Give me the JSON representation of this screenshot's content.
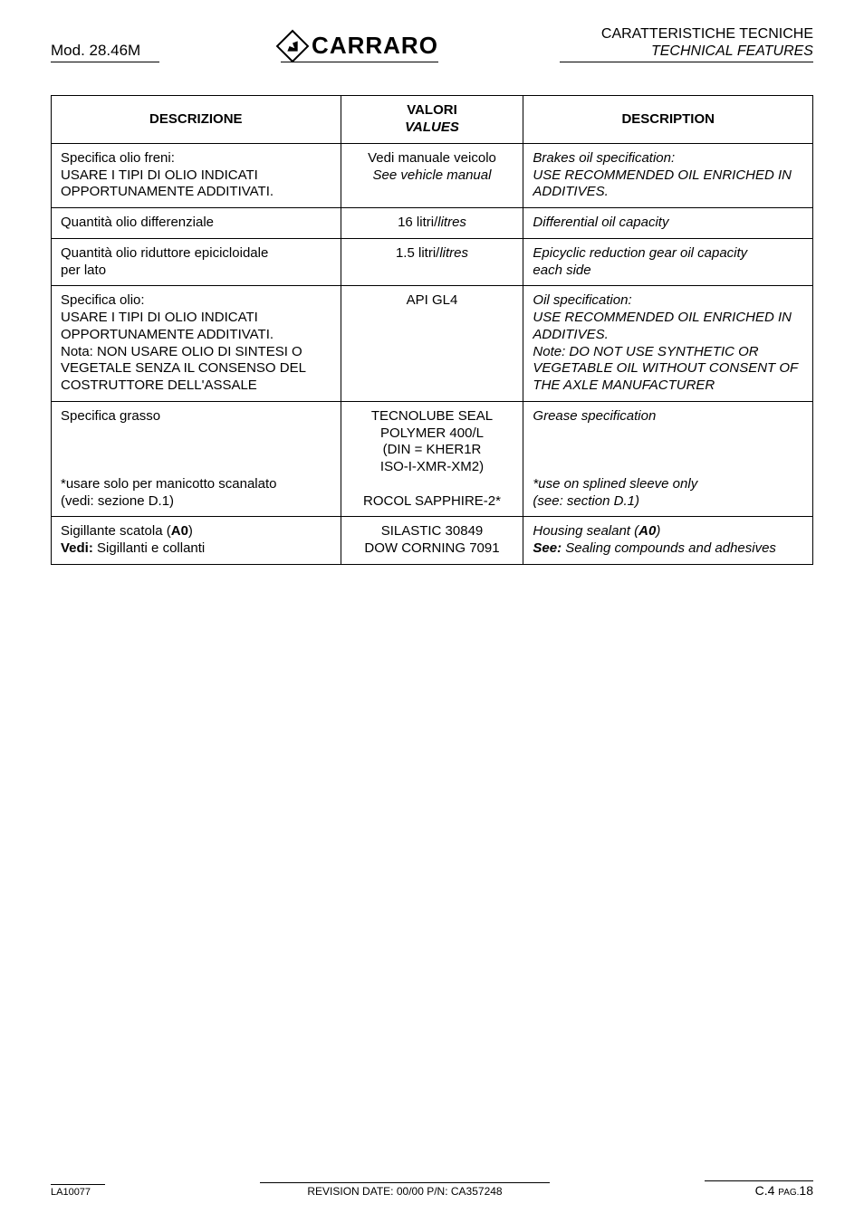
{
  "header": {
    "left": "Mod. 28.46M",
    "logo_text": "CARRARO",
    "right_line1": "CARATTERISTICHE TECNICHE",
    "right_line2": "TECHNICAL FEATURES"
  },
  "table": {
    "headers": {
      "col1": "DESCRIZIONE",
      "col2_line1": "VALORI",
      "col2_line2": "VALUES",
      "col3": "DESCRIPTION"
    },
    "rows": [
      {
        "c1": "Specifica olio freni:\nUSARE I TIPI DI OLIO INDICATI OPPORTUNAMENTE ADDITIVATI.",
        "c2": "Vedi manuale veicolo\nSee vehicle manual",
        "c2_ital_lines": [
          false,
          true
        ],
        "c3": "Brakes oil specification:\nUSE RECOMMENDED OIL ENRICHED IN ADDITIVES."
      },
      {
        "c1": "Quantità olio differenziale",
        "c2": "16 litri/litres",
        "c2_mixed": {
          "plain": "16 litri/",
          "ital": "litres"
        },
        "c3": "Differential oil capacity"
      },
      {
        "c1": "Quantità olio riduttore epicicloidale\nper lato",
        "c2": "1.5 litri/litres",
        "c2_mixed": {
          "plain": "1.5 litri/",
          "ital": "litres"
        },
        "c3": "Epicyclic reduction gear oil capacity\neach side"
      },
      {
        "c1": "Specifica olio:\nUSARE I TIPI DI OLIO INDICATI OPPORTUNAMENTE ADDITIVATI.\nNota: NON USARE OLIO DI SINTESI O VEGETALE SENZA IL CONSENSO DEL COSTRUTTORE DELL'ASSALE",
        "c2": "API GL4",
        "c3": "Oil specification:\nUSE RECOMMENDED OIL ENRICHED IN ADDITIVES.\nNote: DO NOT USE SYNTHETIC OR VEGETABLE OIL WITHOUT CONSENT OF THE AXLE MANUFACTURER"
      },
      {
        "c1_lines": [
          {
            "text": "Specifica grasso",
            "spacer_after": true
          },
          {
            "text": "*usare solo per manicotto scanalato"
          },
          {
            "text": " (vedi: sezione D.1)"
          }
        ],
        "c2_lines": [
          {
            "text": "TECNOLUBE SEAL"
          },
          {
            "text": "POLYMER 400/L"
          },
          {
            "text": "(DIN = KHER1R"
          },
          {
            "text": "ISO-I-XMR-XM2)"
          },
          {
            "text": "",
            "spacer": true
          },
          {
            "text": "ROCOL SAPPHIRE-2*"
          }
        ],
        "c3_lines": [
          {
            "text": "Grease specification",
            "ital": true,
            "spacer_after": true
          },
          {
            "text": "*use on splined sleeve only",
            "ital": true
          },
          {
            "text": " (see: section D.1)",
            "ital": true
          }
        ]
      },
      {
        "c1_rich": [
          {
            "text": "Sigillante scatola ("
          },
          {
            "text": "A0",
            "bold": true
          },
          {
            "text": ")"
          },
          {
            "br": true
          },
          {
            "text": "Vedi:",
            "bold": true
          },
          {
            "text": " Sigillanti e collanti"
          }
        ],
        "c2": "SILASTIC 30849\nDOW CORNING 7091",
        "c3_rich": [
          {
            "text": "Housing sealant (",
            "ital": true
          },
          {
            "text": "A0",
            "ital": true,
            "bold": true
          },
          {
            "text": ")",
            "ital": true
          },
          {
            "br": true
          },
          {
            "text": "See:",
            "ital": true,
            "bold": true
          },
          {
            "text": " Sealing compounds and adhesives",
            "ital": true
          }
        ]
      }
    ]
  },
  "footer": {
    "left": "LA10077",
    "center_prefix": "REVISION DATE: ",
    "center_date": "00/00",
    "center_pn_prefix": "   P/N: ",
    "center_pn": "CA357248",
    "right_section": "C.4",
    "right_pag_label": "PAG.",
    "right_page": "18"
  }
}
